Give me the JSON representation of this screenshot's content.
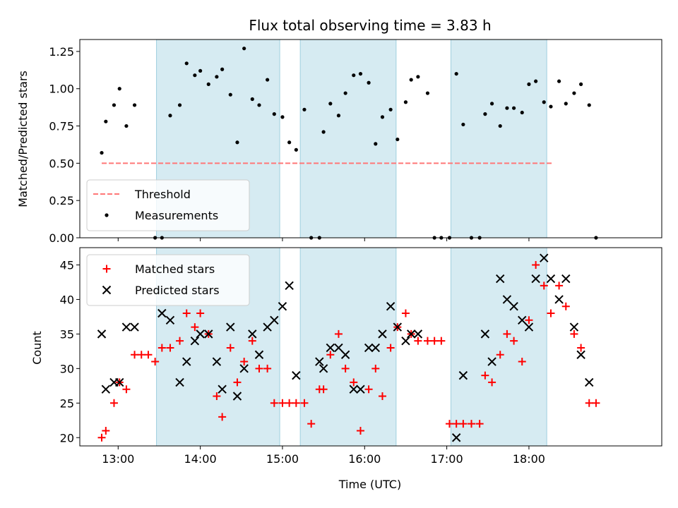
{
  "chart_data": [
    {
      "type": "scatter",
      "title": "Flux total observing time = 3.83 h",
      "ylabel": "Matched/Predicted stars",
      "xlabel": "",
      "xlim": [
        "12:32",
        "19:37"
      ],
      "ylim": [
        0,
        1.33
      ],
      "yticks": [
        "0.00",
        "0.25",
        "0.50",
        "0.75",
        "1.00",
        "1.25"
      ],
      "legend_position": "lower-left",
      "highlight_intervals": [
        [
          "13:28",
          "14:58"
        ],
        [
          "15:13",
          "16:23"
        ],
        [
          "17:03",
          "18:13"
        ]
      ],
      "threshold": {
        "name": "Threshold",
        "value": 0.5,
        "x_range": [
          "12:48",
          "18:18"
        ],
        "color": "#ff7777"
      },
      "series": [
        {
          "name": "Measurements",
          "color": "#000000",
          "points": [
            [
              "12:48",
              0.57
            ],
            [
              "12:51",
              0.78
            ],
            [
              "12:57",
              0.89
            ],
            [
              "13:01",
              1.0
            ],
            [
              "13:06",
              0.75
            ],
            [
              "13:12",
              0.89
            ],
            [
              "13:27",
              0.0
            ],
            [
              "13:32",
              0.0
            ],
            [
              "13:38",
              0.82
            ],
            [
              "13:45",
              0.89
            ],
            [
              "13:50",
              1.17
            ],
            [
              "13:56",
              1.09
            ],
            [
              "14:00",
              1.12
            ],
            [
              "14:06",
              1.03
            ],
            [
              "14:12",
              1.08
            ],
            [
              "14:16",
              1.13
            ],
            [
              "14:22",
              0.96
            ],
            [
              "14:27",
              0.64
            ],
            [
              "14:32",
              1.27
            ],
            [
              "14:38",
              0.93
            ],
            [
              "14:43",
              0.89
            ],
            [
              "14:49",
              1.06
            ],
            [
              "14:54",
              0.83
            ],
            [
              "15:00",
              0.81
            ],
            [
              "15:05",
              0.64
            ],
            [
              "15:10",
              0.59
            ],
            [
              "15:16",
              0.86
            ],
            [
              "15:21",
              0.0
            ],
            [
              "15:27",
              0.0
            ],
            [
              "15:30",
              0.71
            ],
            [
              "15:35",
              0.9
            ],
            [
              "15:41",
              0.82
            ],
            [
              "15:46",
              0.97
            ],
            [
              "15:52",
              1.09
            ],
            [
              "15:57",
              1.1
            ],
            [
              "16:03",
              1.04
            ],
            [
              "16:08",
              0.63
            ],
            [
              "16:13",
              0.81
            ],
            [
              "16:19",
              0.86
            ],
            [
              "16:24",
              0.66
            ],
            [
              "16:30",
              0.91
            ],
            [
              "16:34",
              1.06
            ],
            [
              "16:39",
              1.08
            ],
            [
              "16:46",
              0.97
            ],
            [
              "16:51",
              0.0
            ],
            [
              "16:56",
              0.0
            ],
            [
              "17:02",
              0.0
            ],
            [
              "17:07",
              1.1
            ],
            [
              "17:12",
              0.76
            ],
            [
              "17:18",
              0.0
            ],
            [
              "17:24",
              0.0
            ],
            [
              "17:28",
              0.83
            ],
            [
              "17:33",
              0.9
            ],
            [
              "17:39",
              0.75
            ],
            [
              "17:44",
              0.87
            ],
            [
              "17:49",
              0.87
            ],
            [
              "17:55",
              0.84
            ],
            [
              "18:00",
              1.03
            ],
            [
              "18:05",
              1.05
            ],
            [
              "18:11",
              0.91
            ],
            [
              "18:16",
              0.88
            ],
            [
              "18:22",
              1.05
            ],
            [
              "18:27",
              0.9
            ],
            [
              "18:33",
              0.97
            ],
            [
              "18:38",
              1.03
            ],
            [
              "18:44",
              0.89
            ],
            [
              "18:49",
              0.0
            ]
          ]
        }
      ]
    },
    {
      "type": "scatter",
      "title": "",
      "ylabel": "Count",
      "xlabel": "Time (UTC)",
      "xlim": [
        "12:32",
        "19:37"
      ],
      "ylim": [
        18.8,
        47.5
      ],
      "yticks": [
        "20",
        "25",
        "30",
        "35",
        "40",
        "45"
      ],
      "xticks": [
        "13:00",
        "14:00",
        "15:00",
        "16:00",
        "17:00",
        "18:00"
      ],
      "legend_position": "upper-left",
      "highlight_intervals": [
        [
          "13:28",
          "14:58"
        ],
        [
          "15:13",
          "16:23"
        ],
        [
          "17:03",
          "18:13"
        ]
      ],
      "series": [
        {
          "name": "Matched stars",
          "marker": "plus",
          "color": "#ff0000",
          "points": [
            [
              "12:48",
              20
            ],
            [
              "12:51",
              21
            ],
            [
              "12:57",
              25
            ],
            [
              "13:01",
              28
            ],
            [
              "13:06",
              27
            ],
            [
              "13:12",
              32
            ],
            [
              "13:17",
              32
            ],
            [
              "13:22",
              32
            ],
            [
              "13:27",
              31
            ],
            [
              "13:32",
              33
            ],
            [
              "13:38",
              33
            ],
            [
              "13:45",
              34
            ],
            [
              "13:50",
              38
            ],
            [
              "13:56",
              36
            ],
            [
              "14:00",
              38
            ],
            [
              "14:06",
              35
            ],
            [
              "14:12",
              26
            ],
            [
              "14:16",
              23
            ],
            [
              "14:22",
              33
            ],
            [
              "14:27",
              28
            ],
            [
              "14:32",
              31
            ],
            [
              "14:38",
              34
            ],
            [
              "14:43",
              30
            ],
            [
              "14:49",
              30
            ],
            [
              "14:54",
              25
            ],
            [
              "15:00",
              25
            ],
            [
              "15:05",
              25
            ],
            [
              "15:10",
              25
            ],
            [
              "15:16",
              25
            ],
            [
              "15:21",
              22
            ],
            [
              "15:27",
              27
            ],
            [
              "15:30",
              27
            ],
            [
              "15:35",
              32
            ],
            [
              "15:41",
              35
            ],
            [
              "15:46",
              30
            ],
            [
              "15:52",
              28
            ],
            [
              "15:57",
              21
            ],
            [
              "16:03",
              27
            ],
            [
              "16:08",
              30
            ],
            [
              "16:13",
              26
            ],
            [
              "16:19",
              33
            ],
            [
              "16:24",
              36
            ],
            [
              "16:30",
              38
            ],
            [
              "16:34",
              35
            ],
            [
              "16:39",
              34
            ],
            [
              "16:46",
              34
            ],
            [
              "16:51",
              34
            ],
            [
              "16:56",
              34
            ],
            [
              "17:02",
              22
            ],
            [
              "17:07",
              22
            ],
            [
              "17:12",
              22
            ],
            [
              "17:18",
              22
            ],
            [
              "17:24",
              22
            ],
            [
              "17:28",
              29
            ],
            [
              "17:33",
              28
            ],
            [
              "17:39",
              32
            ],
            [
              "17:44",
              35
            ],
            [
              "17:49",
              34
            ],
            [
              "17:55",
              31
            ],
            [
              "18:00",
              37
            ],
            [
              "18:05",
              45
            ],
            [
              "18:11",
              42
            ],
            [
              "18:16",
              38
            ],
            [
              "18:22",
              42
            ],
            [
              "18:27",
              39
            ],
            [
              "18:33",
              35
            ],
            [
              "18:38",
              33
            ],
            [
              "18:44",
              25
            ],
            [
              "18:49",
              25
            ]
          ]
        },
        {
          "name": "Predicted stars",
          "marker": "x",
          "color": "#000000",
          "points": [
            [
              "12:48",
              35
            ],
            [
              "12:51",
              27
            ],
            [
              "12:57",
              28
            ],
            [
              "13:01",
              28
            ],
            [
              "13:06",
              36
            ],
            [
              "13:12",
              36
            ],
            [
              "13:32",
              38
            ],
            [
              "13:38",
              37
            ],
            [
              "13:45",
              28
            ],
            [
              "13:50",
              31
            ],
            [
              "13:56",
              34
            ],
            [
              "14:00",
              35
            ],
            [
              "14:06",
              35
            ],
            [
              "14:12",
              31
            ],
            [
              "14:16",
              27
            ],
            [
              "14:22",
              36
            ],
            [
              "14:27",
              26
            ],
            [
              "14:32",
              30
            ],
            [
              "14:38",
              35
            ],
            [
              "14:43",
              32
            ],
            [
              "14:49",
              36
            ],
            [
              "14:54",
              37
            ],
            [
              "15:00",
              39
            ],
            [
              "15:05",
              42
            ],
            [
              "15:10",
              29
            ],
            [
              "15:27",
              31
            ],
            [
              "15:30",
              30
            ],
            [
              "15:35",
              33
            ],
            [
              "15:41",
              33
            ],
            [
              "15:46",
              32
            ],
            [
              "15:52",
              27
            ],
            [
              "15:57",
              27
            ],
            [
              "16:03",
              33
            ],
            [
              "16:08",
              33
            ],
            [
              "16:13",
              35
            ],
            [
              "16:19",
              39
            ],
            [
              "16:24",
              36
            ],
            [
              "16:30",
              34
            ],
            [
              "16:34",
              35
            ],
            [
              "16:39",
              35
            ],
            [
              "17:07",
              20
            ],
            [
              "17:12",
              29
            ],
            [
              "17:28",
              35
            ],
            [
              "17:33",
              31
            ],
            [
              "17:39",
              43
            ],
            [
              "17:44",
              40
            ],
            [
              "17:49",
              39
            ],
            [
              "17:55",
              37
            ],
            [
              "18:00",
              36
            ],
            [
              "18:05",
              43
            ],
            [
              "18:11",
              46
            ],
            [
              "18:16",
              43
            ],
            [
              "18:22",
              40
            ],
            [
              "18:27",
              43
            ],
            [
              "18:33",
              36
            ],
            [
              "18:38",
              32
            ],
            [
              "18:44",
              28
            ]
          ]
        }
      ]
    }
  ]
}
